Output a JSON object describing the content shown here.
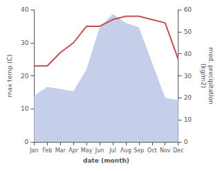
{
  "chart_data": {
    "type": "line",
    "xlabel": "date (month)",
    "ylabel": "max temp (C)",
    "y2label": "med. precipitation\n(kg/m2)",
    "categories": [
      "Jan",
      "Feb",
      "Mar",
      "Apr",
      "May",
      "Jun",
      "Jul",
      "Aug",
      "Sep",
      "Oct",
      "Nov",
      "Dec"
    ],
    "series": [
      {
        "type": "area",
        "axis": "y2",
        "color": "#c5cfea",
        "values": [
          21,
          25,
          24,
          23,
          33,
          52,
          58,
          54,
          52,
          36,
          20,
          19
        ]
      },
      {
        "type": "line",
        "color": "#c0504d",
        "values": [
          23,
          23,
          27,
          30,
          35,
          35,
          37,
          38,
          38,
          37,
          36,
          25
        ]
      }
    ],
    "ylim": [
      0,
      40
    ],
    "yticks": [
      0,
      10,
      20,
      30,
      40
    ],
    "y2lim": [
      0,
      60
    ],
    "y2ticks": [
      0,
      10,
      20,
      30,
      40,
      50,
      60
    ],
    "grid": false
  }
}
